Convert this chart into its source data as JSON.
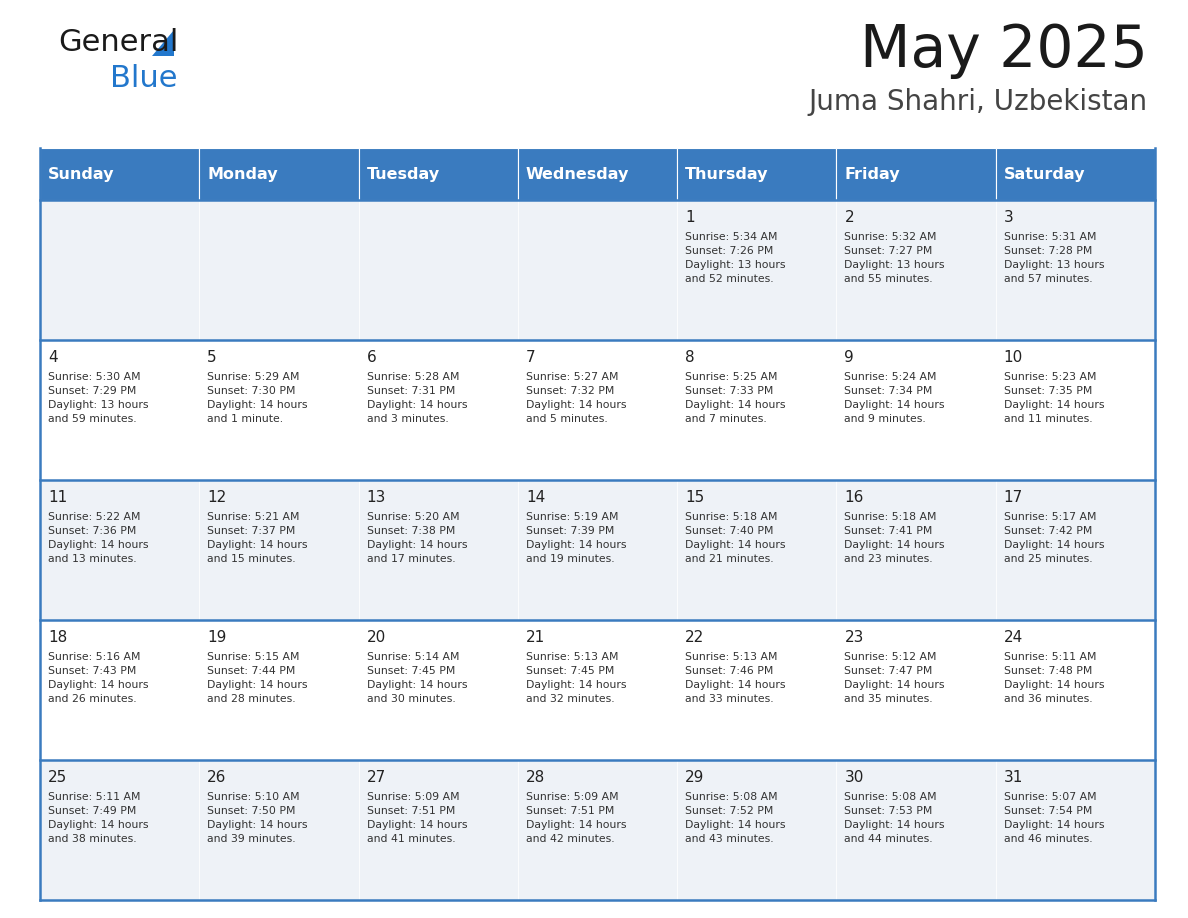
{
  "title": "May 2025",
  "subtitle": "Juma Shahri, Uzbekistan",
  "days_of_week": [
    "Sunday",
    "Monday",
    "Tuesday",
    "Wednesday",
    "Thursday",
    "Friday",
    "Saturday"
  ],
  "header_bg": "#3a7bbf",
  "header_text_color": "#ffffff",
  "row_bg_odd": "#eef2f7",
  "row_bg_even": "#ffffff",
  "cell_border_color": "#3a7bbf",
  "day_num_color": "#222222",
  "info_color": "#333333",
  "title_color": "#1a1a1a",
  "subtitle_color": "#444444",
  "weeks": [
    [
      {
        "day": null,
        "info": null
      },
      {
        "day": null,
        "info": null
      },
      {
        "day": null,
        "info": null
      },
      {
        "day": null,
        "info": null
      },
      {
        "day": 1,
        "info": "Sunrise: 5:34 AM\nSunset: 7:26 PM\nDaylight: 13 hours\nand 52 minutes."
      },
      {
        "day": 2,
        "info": "Sunrise: 5:32 AM\nSunset: 7:27 PM\nDaylight: 13 hours\nand 55 minutes."
      },
      {
        "day": 3,
        "info": "Sunrise: 5:31 AM\nSunset: 7:28 PM\nDaylight: 13 hours\nand 57 minutes."
      }
    ],
    [
      {
        "day": 4,
        "info": "Sunrise: 5:30 AM\nSunset: 7:29 PM\nDaylight: 13 hours\nand 59 minutes."
      },
      {
        "day": 5,
        "info": "Sunrise: 5:29 AM\nSunset: 7:30 PM\nDaylight: 14 hours\nand 1 minute."
      },
      {
        "day": 6,
        "info": "Sunrise: 5:28 AM\nSunset: 7:31 PM\nDaylight: 14 hours\nand 3 minutes."
      },
      {
        "day": 7,
        "info": "Sunrise: 5:27 AM\nSunset: 7:32 PM\nDaylight: 14 hours\nand 5 minutes."
      },
      {
        "day": 8,
        "info": "Sunrise: 5:25 AM\nSunset: 7:33 PM\nDaylight: 14 hours\nand 7 minutes."
      },
      {
        "day": 9,
        "info": "Sunrise: 5:24 AM\nSunset: 7:34 PM\nDaylight: 14 hours\nand 9 minutes."
      },
      {
        "day": 10,
        "info": "Sunrise: 5:23 AM\nSunset: 7:35 PM\nDaylight: 14 hours\nand 11 minutes."
      }
    ],
    [
      {
        "day": 11,
        "info": "Sunrise: 5:22 AM\nSunset: 7:36 PM\nDaylight: 14 hours\nand 13 minutes."
      },
      {
        "day": 12,
        "info": "Sunrise: 5:21 AM\nSunset: 7:37 PM\nDaylight: 14 hours\nand 15 minutes."
      },
      {
        "day": 13,
        "info": "Sunrise: 5:20 AM\nSunset: 7:38 PM\nDaylight: 14 hours\nand 17 minutes."
      },
      {
        "day": 14,
        "info": "Sunrise: 5:19 AM\nSunset: 7:39 PM\nDaylight: 14 hours\nand 19 minutes."
      },
      {
        "day": 15,
        "info": "Sunrise: 5:18 AM\nSunset: 7:40 PM\nDaylight: 14 hours\nand 21 minutes."
      },
      {
        "day": 16,
        "info": "Sunrise: 5:18 AM\nSunset: 7:41 PM\nDaylight: 14 hours\nand 23 minutes."
      },
      {
        "day": 17,
        "info": "Sunrise: 5:17 AM\nSunset: 7:42 PM\nDaylight: 14 hours\nand 25 minutes."
      }
    ],
    [
      {
        "day": 18,
        "info": "Sunrise: 5:16 AM\nSunset: 7:43 PM\nDaylight: 14 hours\nand 26 minutes."
      },
      {
        "day": 19,
        "info": "Sunrise: 5:15 AM\nSunset: 7:44 PM\nDaylight: 14 hours\nand 28 minutes."
      },
      {
        "day": 20,
        "info": "Sunrise: 5:14 AM\nSunset: 7:45 PM\nDaylight: 14 hours\nand 30 minutes."
      },
      {
        "day": 21,
        "info": "Sunrise: 5:13 AM\nSunset: 7:45 PM\nDaylight: 14 hours\nand 32 minutes."
      },
      {
        "day": 22,
        "info": "Sunrise: 5:13 AM\nSunset: 7:46 PM\nDaylight: 14 hours\nand 33 minutes."
      },
      {
        "day": 23,
        "info": "Sunrise: 5:12 AM\nSunset: 7:47 PM\nDaylight: 14 hours\nand 35 minutes."
      },
      {
        "day": 24,
        "info": "Sunrise: 5:11 AM\nSunset: 7:48 PM\nDaylight: 14 hours\nand 36 minutes."
      }
    ],
    [
      {
        "day": 25,
        "info": "Sunrise: 5:11 AM\nSunset: 7:49 PM\nDaylight: 14 hours\nand 38 minutes."
      },
      {
        "day": 26,
        "info": "Sunrise: 5:10 AM\nSunset: 7:50 PM\nDaylight: 14 hours\nand 39 minutes."
      },
      {
        "day": 27,
        "info": "Sunrise: 5:09 AM\nSunset: 7:51 PM\nDaylight: 14 hours\nand 41 minutes."
      },
      {
        "day": 28,
        "info": "Sunrise: 5:09 AM\nSunset: 7:51 PM\nDaylight: 14 hours\nand 42 minutes."
      },
      {
        "day": 29,
        "info": "Sunrise: 5:08 AM\nSunset: 7:52 PM\nDaylight: 14 hours\nand 43 minutes."
      },
      {
        "day": 30,
        "info": "Sunrise: 5:08 AM\nSunset: 7:53 PM\nDaylight: 14 hours\nand 44 minutes."
      },
      {
        "day": 31,
        "info": "Sunrise: 5:07 AM\nSunset: 7:54 PM\nDaylight: 14 hours\nand 46 minutes."
      }
    ]
  ]
}
